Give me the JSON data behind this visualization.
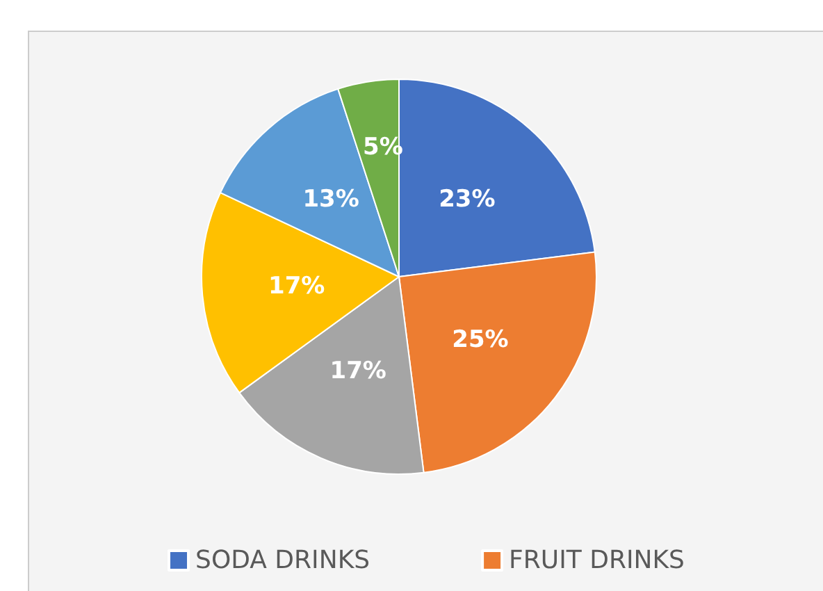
{
  "chart_data": {
    "type": "pie",
    "categories": [
      "SODA DRINKS",
      "FRUIT DRINKS",
      null,
      null,
      null,
      null
    ],
    "values": [
      23,
      25,
      17,
      17,
      13,
      5
    ],
    "colors": [
      "#4472c4",
      "#ed7d31",
      "#a5a5a5",
      "#ffc000",
      "#5b9bd5",
      "#70ad47"
    ],
    "value_labels": [
      "23%",
      "25%",
      "17%",
      "17%",
      "13%",
      "5%"
    ],
    "legend": "bottom"
  }
}
